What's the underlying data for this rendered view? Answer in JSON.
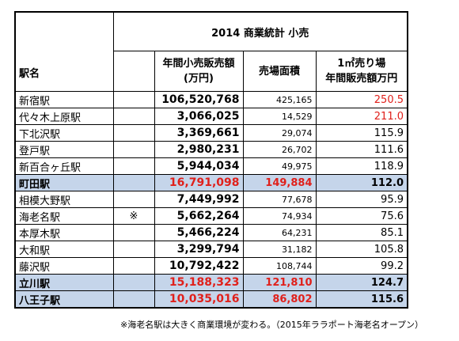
{
  "header": {
    "title": "2014 商業統計 小売",
    "columns": [
      "駅名",
      "年間小売販売額\n(万円)",
      "売場面積",
      "1㎡売り場\n年間販売額万円"
    ]
  },
  "table": {
    "rows": [
      [
        "新宿駅",
        null,
        "106,520,768",
        "425,165",
        "250.5"
      ],
      [
        "代々木上原駅",
        null,
        "3,066,025",
        "14,529",
        "211.0"
      ],
      [
        "下北沢駅",
        null,
        "3,369,661",
        "29,074",
        "115.9"
      ],
      [
        "登戸駅",
        null,
        "2,980,231",
        "26,702",
        "111.6"
      ],
      [
        "新百合ヶ丘駅",
        null,
        "5,944,034",
        "49,975",
        "118.9"
      ],
      [
        "町田駅",
        null,
        "16,791,098",
        "149,884",
        "112.0"
      ],
      [
        "相模大野駅",
        null,
        "7,449,992",
        "77,678",
        "95.9"
      ],
      [
        "海老名駅",
        "※",
        "5,662,264",
        "74,934",
        "75.6"
      ],
      [
        "本厚木駅",
        null,
        "5,466,224",
        "64,231",
        "85.1"
      ],
      [
        "大和駅",
        null,
        "3,299,794",
        "31,182",
        "105.8"
      ],
      [
        "藤沢駅",
        null,
        "10,792,422",
        "108,744",
        "99.2"
      ],
      [
        "立川駅",
        null,
        "15,188,323",
        "121,810",
        "124.7"
      ],
      [
        "八王子駅",
        null,
        "10,035,016",
        "86,802",
        "115.6"
      ]
    ]
  },
  "footnote": "※海老名駅は大きく商業環境が変わる。（2015年ララポート海老名オープン）"
}
